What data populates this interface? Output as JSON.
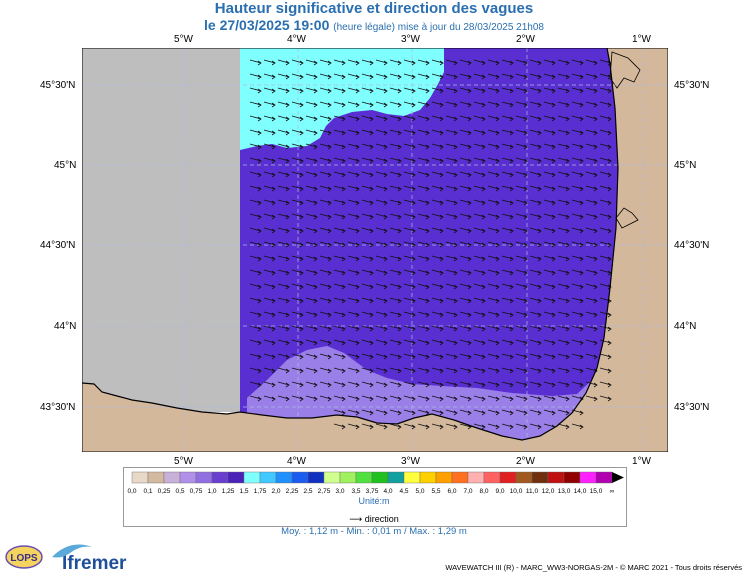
{
  "title": "Hauteur significative et direction des vagues",
  "subtitle": {
    "date": "le 27/03/2025 19:00",
    "legal": "(heure légale) mise à jour du 28/03/2025 21h08"
  },
  "axes": {
    "lon_ticks": [
      "5°W",
      "4°W",
      "3°W",
      "2°W",
      "1°W"
    ],
    "lat_ticks": [
      "45°30'N",
      "45°N",
      "44°30'N",
      "44°N",
      "43°30'N"
    ]
  },
  "colorbar": {
    "labels": [
      "0,0",
      "0,1",
      "0,25",
      "0,5",
      "0,75",
      "1,0",
      "1,25",
      "1,5",
      "1,75",
      "2,0",
      "2,25",
      "2,5",
      "2,75",
      "3,0",
      "3,5",
      "3,75",
      "4,0",
      "4,5",
      "5,0",
      "5,5",
      "6,0",
      "7,0",
      "8,0",
      "9,0",
      "10,0",
      "11,0",
      "12,0",
      "13,0",
      "14,0",
      "15,0",
      "∞"
    ],
    "colors": [
      "#e8d8c8",
      "#d2b9a0",
      "#c8b0d8",
      "#b090e8",
      "#9070e0",
      "#6a3fd0",
      "#4a22b8",
      "#80ffff",
      "#40c8ff",
      "#2090ff",
      "#1a5cf0",
      "#1030c0",
      "#d0ff90",
      "#a0f060",
      "#50e040",
      "#20c020",
      "#10a0a0",
      "#ffff40",
      "#ffd000",
      "#ffa000",
      "#ff7020",
      "#ffb0b0",
      "#ff6060",
      "#e02020",
      "#a05a20",
      "#703010",
      "#c01010",
      "#900000",
      "#ff20ff",
      "#b000b0"
    ],
    "unit": "Unité:m",
    "direction_label": "direction"
  },
  "stats": "Moy. : 1,12 m   -   Min. : 0,01 m / Max. : 1,29 m",
  "credit": "WAVEWATCH III (R) - MARC_WW3-NORGAS-2M - © MARC 2021 - Tous droits réservés",
  "logos": {
    "ifremer": "Ifremer",
    "lops": "LOPS"
  },
  "map_colors": {
    "sea_main": "#5a2fd2",
    "sea_high": "#80ffff",
    "sea_shallow": "#9b7fe8",
    "land": "#d4b89c",
    "nodata": "#bebebe"
  }
}
